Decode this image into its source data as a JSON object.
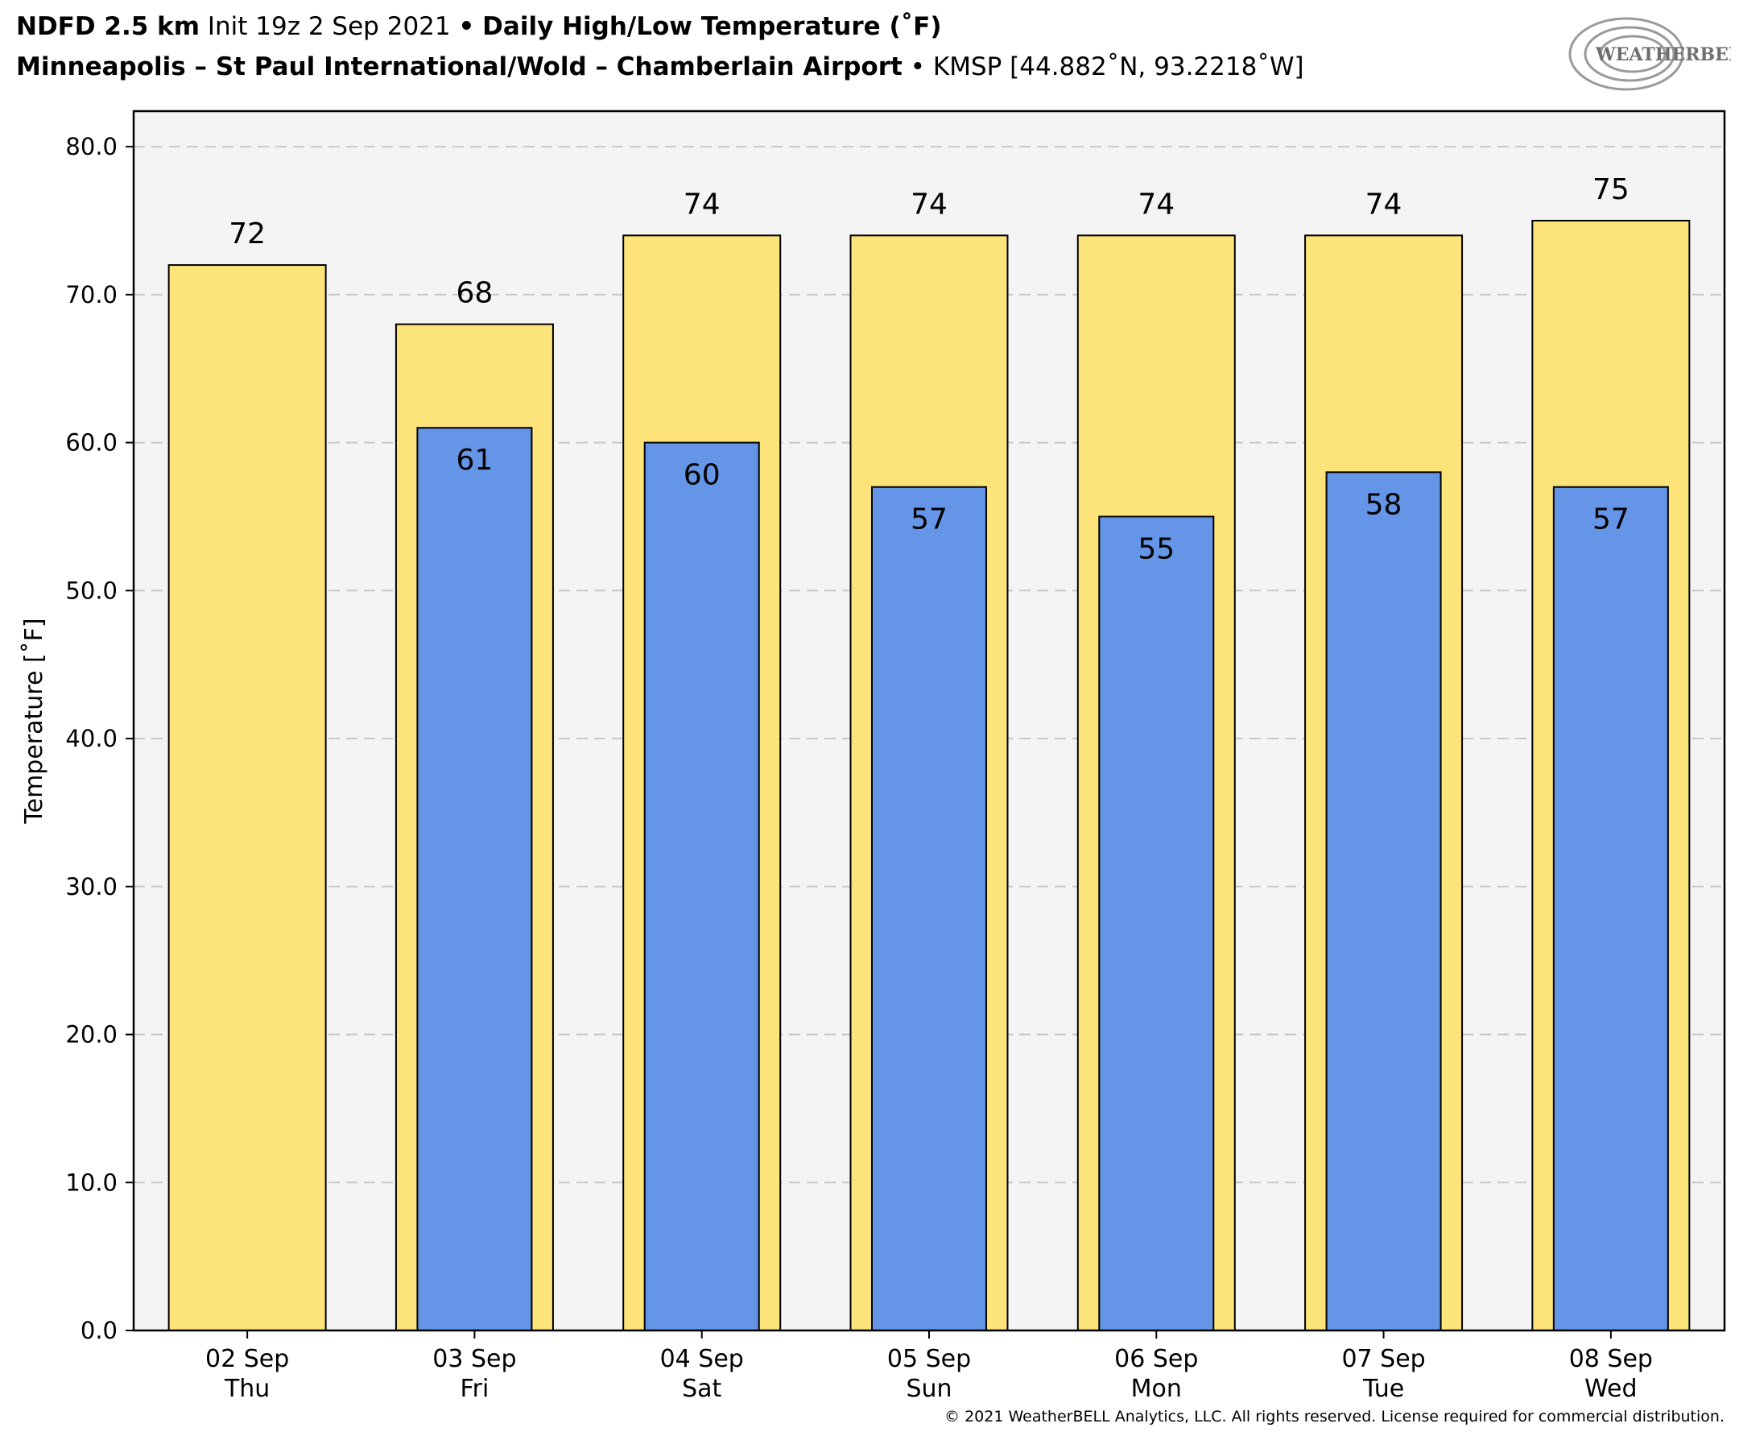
{
  "header": {
    "line1_bold": "NDFD 2.5 km",
    "line1_normal": "Init 19z 2 Sep 2021",
    "line1_sep": "•",
    "line1_title": "Daily High/Low Temperature (˚F)",
    "line2_bold": "Minneapolis – St Paul International/Wold – Chamberlain Airport",
    "line2_sep": "•",
    "line2_normal": "KMSP [44.882˚N, 93.2218˚W]"
  },
  "logo": {
    "text": "WEATHERBELL"
  },
  "copyright": "© 2021 WeatherBELL Analytics, LLC. All rights reserved. License required for commercial distribution.",
  "colors": {
    "high": "#fce47a",
    "low": "#6495e6",
    "plot_bg": "#f4f4f4",
    "grid": "#c8c8c8"
  },
  "chart_data": {
    "type": "bar",
    "categories": [
      "02 Sep",
      "03 Sep",
      "04 Sep",
      "05 Sep",
      "06 Sep",
      "07 Sep",
      "08 Sep"
    ],
    "category_sublabels": [
      "Thu",
      "Fri",
      "Sat",
      "Sun",
      "Mon",
      "Tue",
      "Wed"
    ],
    "series": [
      {
        "values": [
          72,
          68,
          74,
          74,
          74,
          74,
          75
        ],
        "color": "#fce47a"
      },
      {
        "values": [
          null,
          61,
          60,
          57,
          55,
          58,
          57
        ],
        "color": "#6495e6"
      }
    ],
    "ylabel": "Temperature [˚F]",
    "ylim": [
      0,
      80
    ],
    "yticks": [
      "0.0",
      "10.0",
      "20.0",
      "30.0",
      "40.0",
      "50.0",
      "60.0",
      "70.0",
      "80.0"
    ],
    "grid": true,
    "legend": "none"
  }
}
